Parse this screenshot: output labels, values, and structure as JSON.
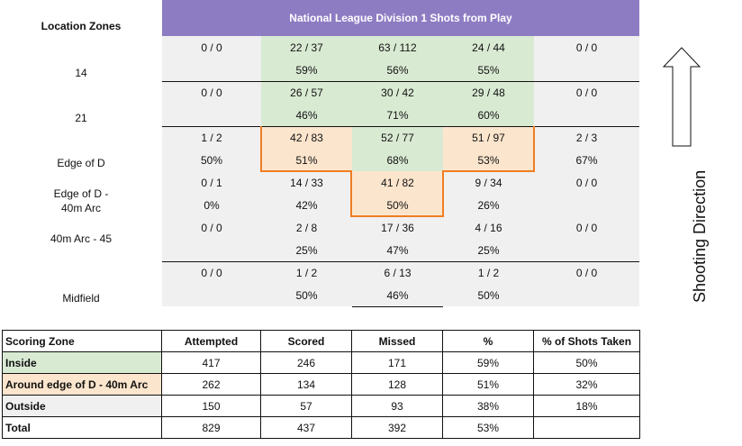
{
  "header": {
    "zones_title": "Location Zones",
    "chart_title": "National League Division 1 Shots from Play",
    "shooting_direction": "Shooting Direction"
  },
  "grid": {
    "rows": [
      {
        "label": "14",
        "cells": [
          [
            "0 / 0",
            ""
          ],
          [
            "22 / 37",
            "59%"
          ],
          [
            "63 / 112",
            "56%"
          ],
          [
            "24 / 44",
            "55%"
          ],
          [
            "0 / 0",
            ""
          ]
        ]
      },
      {
        "label": "21",
        "cells": [
          [
            "0 / 0",
            ""
          ],
          [
            "26 / 57",
            "46%"
          ],
          [
            "30 / 42",
            "71%"
          ],
          [
            "29 / 48",
            "60%"
          ],
          [
            "0 / 0",
            ""
          ]
        ]
      },
      {
        "label": "Edge of D",
        "cells": [
          [
            "1 / 2",
            "50%"
          ],
          [
            "42 / 83",
            "51%"
          ],
          [
            "52 / 77",
            "68%"
          ],
          [
            "51 / 97",
            "53%"
          ],
          [
            "2 / 3",
            "67%"
          ]
        ]
      },
      {
        "label": "Edge of D - 40m Arc",
        "cells": [
          [
            "0 / 1",
            "0%"
          ],
          [
            "14 / 33",
            "42%"
          ],
          [
            "41 / 82",
            "50%"
          ],
          [
            "9 / 34",
            "26%"
          ],
          [
            "0 / 0",
            ""
          ]
        ]
      },
      {
        "label": "40m Arc - 45",
        "cells": [
          [
            "0 / 0",
            ""
          ],
          [
            "2 / 8",
            "25%"
          ],
          [
            "17 / 36",
            "47%"
          ],
          [
            "4 / 16",
            "25%"
          ],
          [
            "0 / 0",
            ""
          ]
        ]
      },
      {
        "label": "Midfield",
        "cells": [
          [
            "0 / 0",
            ""
          ],
          [
            "1 / 2",
            "50%"
          ],
          [
            "6 / 13",
            "46%"
          ],
          [
            "1 / 2",
            "50%"
          ],
          [
            "0 / 0",
            ""
          ]
        ]
      }
    ]
  },
  "table": {
    "headers": [
      "Scoring Zone",
      "Attempted",
      "Scored",
      "Missed",
      "%",
      "% of Shots Taken"
    ],
    "rows": [
      {
        "zone": "Inside",
        "attempted": "417",
        "scored": "246",
        "missed": "171",
        "pct": "59%",
        "share": "50%"
      },
      {
        "zone": "Around edge of D - 40m Arc",
        "attempted": "262",
        "scored": "134",
        "missed": "128",
        "pct": "51%",
        "share": "32%"
      },
      {
        "zone": "Outside",
        "attempted": "150",
        "scored": "57",
        "missed": "93",
        "pct": "38%",
        "share": "18%"
      },
      {
        "zone": "Total",
        "attempted": "829",
        "scored": "437",
        "missed": "392",
        "pct": "53%",
        "share": ""
      }
    ]
  },
  "colors": {
    "header": "#8e7cc3",
    "inside": "#d9ead3",
    "edge": "#fce5cd",
    "outside": "#f0f0f0",
    "highlight": "#ef7d22"
  }
}
